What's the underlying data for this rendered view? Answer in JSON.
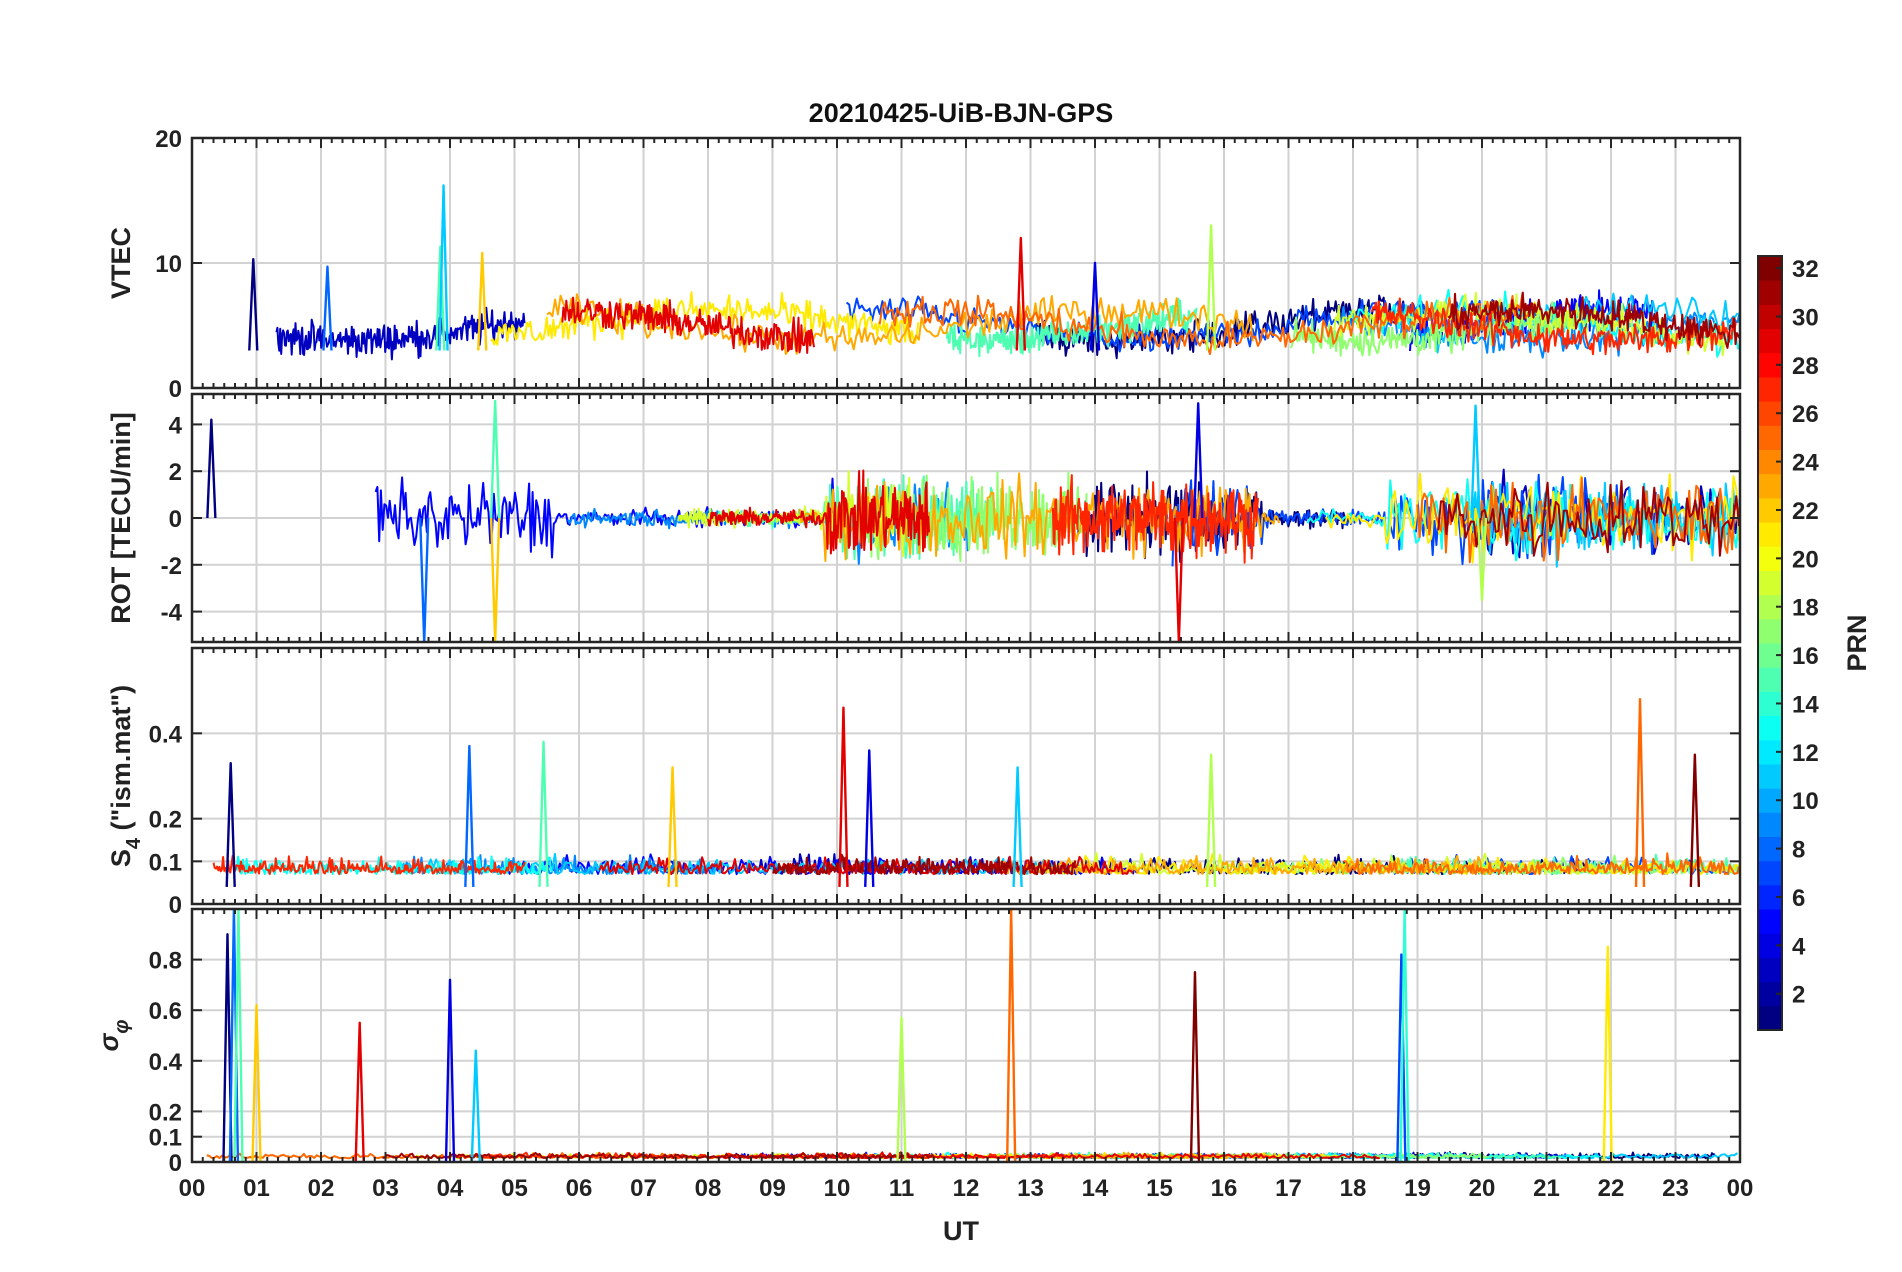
{
  "figure": {
    "title": "20210425-UiB-BJN-GPS",
    "xlabel": "UT",
    "x_ticks": [
      "00",
      "01",
      "02",
      "03",
      "04",
      "05",
      "06",
      "07",
      "08",
      "09",
      "10",
      "11",
      "12",
      "13",
      "14",
      "15",
      "16",
      "17",
      "18",
      "19",
      "20",
      "21",
      "22",
      "23",
      "00"
    ]
  },
  "colorbar": {
    "label": "PRN",
    "min": 1,
    "max": 32,
    "ticks": [
      2,
      4,
      6,
      8,
      10,
      12,
      14,
      16,
      18,
      20,
      22,
      24,
      26,
      28,
      30,
      32
    ],
    "colormap": "jet"
  },
  "chart_data": [
    {
      "type": "line",
      "ylabel": "VTEC",
      "ylim": [
        0,
        20
      ],
      "yticks": [
        0,
        10,
        20
      ],
      "x_range_hours": [
        0,
        24
      ],
      "grid": true,
      "series_by": "PRN (1-32)",
      "typical_range": [
        3,
        9
      ],
      "peaks": [
        {
          "x": 0.95,
          "y": 10.3
        },
        {
          "x": 2.1,
          "y": 9.7
        },
        {
          "x": 3.85,
          "y": 11.3
        },
        {
          "x": 4.5,
          "y": 10.8
        },
        {
          "x": 12.85,
          "y": 12.0
        },
        {
          "x": 14.0,
          "y": 10.0
        },
        {
          "x": 3.9,
          "y": 16.2
        },
        {
          "x": 15.8,
          "y": 13.0
        }
      ]
    },
    {
      "type": "line",
      "ylabel": "ROT [TECU/min]",
      "ylim": [
        -5.3,
        5.3
      ],
      "yticks": [
        -4,
        -2,
        0,
        2,
        4
      ],
      "x_range_hours": [
        0,
        24
      ],
      "grid": true,
      "series_by": "PRN (1-32)",
      "active_intervals_hours": [
        [
          0,
          5.6
        ],
        [
          9.8,
          16.6
        ],
        [
          18.5,
          24
        ]
      ],
      "extremes": [
        {
          "x": 0.3,
          "y": 4.2
        },
        {
          "x": 3.6,
          "y": -5.3
        },
        {
          "x": 4.7,
          "y": 5.0
        },
        {
          "x": 4.7,
          "y": -5.3
        },
        {
          "x": 15.3,
          "y": -5.3
        },
        {
          "x": 15.6,
          "y": 4.9
        },
        {
          "x": 19.9,
          "y": 4.8
        },
        {
          "x": 20.0,
          "y": -3.5
        }
      ]
    },
    {
      "type": "line",
      "ylabel": "S_4 (\"ism.mat\")",
      "ylim": [
        0,
        0.6
      ],
      "yticks": [
        0,
        0.1,
        0.2,
        0.4
      ],
      "x_range_hours": [
        0,
        24
      ],
      "grid": true,
      "series_by": "PRN (1-32)",
      "typical_range": [
        0.04,
        0.15
      ],
      "peaks": [
        {
          "x": 0.6,
          "y": 0.33
        },
        {
          "x": 4.3,
          "y": 0.37
        },
        {
          "x": 5.45,
          "y": 0.38
        },
        {
          "x": 7.45,
          "y": 0.32
        },
        {
          "x": 10.1,
          "y": 0.46
        },
        {
          "x": 10.5,
          "y": 0.36
        },
        {
          "x": 12.8,
          "y": 0.32
        },
        {
          "x": 15.8,
          "y": 0.35
        },
        {
          "x": 22.45,
          "y": 0.48
        },
        {
          "x": 23.3,
          "y": 0.35
        }
      ]
    },
    {
      "type": "line",
      "ylabel": "σ_φ",
      "ylim": [
        0,
        1
      ],
      "yticks": [
        0,
        0.1,
        0.2,
        0.4,
        0.6,
        0.8
      ],
      "x_range_hours": [
        0,
        24
      ],
      "grid": true,
      "series_by": "PRN (1-32)",
      "typical_range": [
        0.0,
        0.05
      ],
      "peaks": [
        {
          "x": 0.55,
          "y": 0.9
        },
        {
          "x": 0.65,
          "y": 1.0
        },
        {
          "x": 0.72,
          "y": 1.0
        },
        {
          "x": 1.0,
          "y": 0.62
        },
        {
          "x": 2.6,
          "y": 0.55
        },
        {
          "x": 4.0,
          "y": 0.72
        },
        {
          "x": 4.4,
          "y": 0.44
        },
        {
          "x": 11.0,
          "y": 0.57
        },
        {
          "x": 12.7,
          "y": 1.0
        },
        {
          "x": 15.55,
          "y": 0.75
        },
        {
          "x": 18.75,
          "y": 0.82
        },
        {
          "x": 18.8,
          "y": 1.0
        },
        {
          "x": 21.95,
          "y": 0.85
        }
      ]
    }
  ]
}
